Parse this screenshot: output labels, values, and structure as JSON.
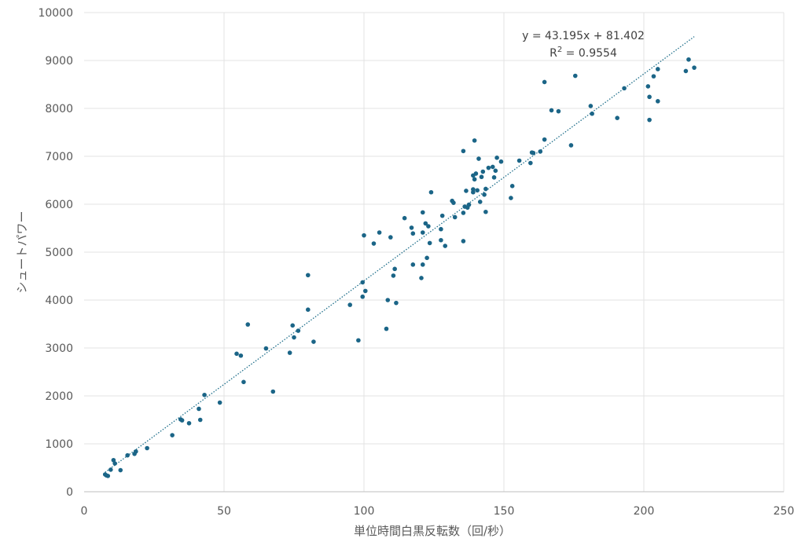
{
  "chart_data": {
    "type": "scatter",
    "title": "",
    "xlabel": "単位時間白黒反転数（回/秒）",
    "ylabel": "シュートパワー",
    "xlim": [
      0,
      250
    ],
    "ylim": [
      0,
      10000
    ],
    "x_ticks": [
      "0",
      "50",
      "100",
      "150",
      "200",
      "250"
    ],
    "y_ticks": [
      "0",
      "1000",
      "2000",
      "3000",
      "4000",
      "5000",
      "6000",
      "7000",
      "8000",
      "9000",
      "10000"
    ],
    "grid": true,
    "legend": "none",
    "point_color": "#1b6587",
    "trendline": {
      "slope": 43.195,
      "intercept": 81.402,
      "x_range": [
        7.5,
        218
      ],
      "equation_line1": "y = 43.195x + 81.402",
      "r2_prefix": "R",
      "r2_sup": "2",
      "r2_suffix": " = 0.9554"
    },
    "series": [
      {
        "points": [
          [
            7.5,
            360
          ],
          [
            8,
            340
          ],
          [
            8.5,
            330
          ],
          [
            9.5,
            460
          ],
          [
            10.5,
            660
          ],
          [
            11,
            590
          ],
          [
            13,
            450
          ],
          [
            15.5,
            760
          ],
          [
            18,
            790
          ],
          [
            18.5,
            840
          ],
          [
            22.5,
            910
          ],
          [
            31.5,
            1180
          ],
          [
            34.5,
            1510
          ],
          [
            35,
            1490
          ],
          [
            37.5,
            1430
          ],
          [
            41,
            1730
          ],
          [
            41.5,
            1500
          ],
          [
            43,
            2020
          ],
          [
            48.5,
            1860
          ],
          [
            54.5,
            2880
          ],
          [
            56,
            2840
          ],
          [
            57,
            2290
          ],
          [
            58.5,
            3490
          ],
          [
            65,
            2990
          ],
          [
            67.5,
            2090
          ],
          [
            73.5,
            2900
          ],
          [
            74.5,
            3470
          ],
          [
            75,
            3220
          ],
          [
            76.5,
            3360
          ],
          [
            80,
            4520
          ],
          [
            80,
            3800
          ],
          [
            82,
            3130
          ],
          [
            95,
            3900
          ],
          [
            98,
            3160
          ],
          [
            99.5,
            4070
          ],
          [
            99.5,
            4370
          ],
          [
            100,
            5350
          ],
          [
            100.5,
            4190
          ],
          [
            103.5,
            5180
          ],
          [
            105.5,
            5410
          ],
          [
            108,
            3400
          ],
          [
            108.5,
            4000
          ],
          [
            109.5,
            5310
          ],
          [
            110.5,
            4510
          ],
          [
            111,
            4650
          ],
          [
            111.5,
            3940
          ],
          [
            114.5,
            5710
          ],
          [
            117,
            5510
          ],
          [
            117.5,
            5390
          ],
          [
            117.5,
            4740
          ],
          [
            120.5,
            4460
          ],
          [
            121,
            5410
          ],
          [
            121,
            5830
          ],
          [
            121,
            4740
          ],
          [
            122,
            5600
          ],
          [
            122.5,
            4880
          ],
          [
            123,
            5540
          ],
          [
            123.5,
            5190
          ],
          [
            124,
            6250
          ],
          [
            127.5,
            5250
          ],
          [
            127.5,
            5480
          ],
          [
            128,
            5760
          ],
          [
            129,
            5130
          ],
          [
            131.5,
            6070
          ],
          [
            132,
            6030
          ],
          [
            132.5,
            5730
          ],
          [
            135.5,
            7110
          ],
          [
            135.5,
            5820
          ],
          [
            135.5,
            5230
          ],
          [
            136,
            5950
          ],
          [
            136.5,
            6280
          ],
          [
            137,
            5930
          ],
          [
            137.5,
            5990
          ],
          [
            139,
            6250
          ],
          [
            139,
            6310
          ],
          [
            139,
            6600
          ],
          [
            139.5,
            6520
          ],
          [
            139.5,
            7330
          ],
          [
            140,
            6640
          ],
          [
            140.5,
            6290
          ],
          [
            141,
            6950
          ],
          [
            141.5,
            6050
          ],
          [
            142,
            6570
          ],
          [
            142.5,
            6680
          ],
          [
            143,
            6200
          ],
          [
            143.5,
            6320
          ],
          [
            143.5,
            5840
          ],
          [
            144.5,
            6760
          ],
          [
            146,
            6780
          ],
          [
            146.5,
            6560
          ],
          [
            147,
            6700
          ],
          [
            147.5,
            6970
          ],
          [
            149,
            6890
          ],
          [
            152.5,
            6130
          ],
          [
            153,
            6380
          ],
          [
            155.5,
            6910
          ],
          [
            159.5,
            6860
          ],
          [
            160,
            7080
          ],
          [
            160.5,
            7070
          ],
          [
            163,
            7100
          ],
          [
            164.5,
            8550
          ],
          [
            164.5,
            7350
          ],
          [
            167,
            7960
          ],
          [
            169.5,
            7940
          ],
          [
            174,
            7230
          ],
          [
            175.5,
            8680
          ],
          [
            181,
            8050
          ],
          [
            181.5,
            7890
          ],
          [
            190.5,
            7800
          ],
          [
            193,
            8420
          ],
          [
            201.5,
            8460
          ],
          [
            202,
            8240
          ],
          [
            202,
            7760
          ],
          [
            203.5,
            8670
          ],
          [
            205,
            8820
          ],
          [
            205,
            8150
          ],
          [
            215,
            8780
          ],
          [
            216,
            9020
          ],
          [
            218,
            8850
          ]
        ]
      }
    ]
  }
}
